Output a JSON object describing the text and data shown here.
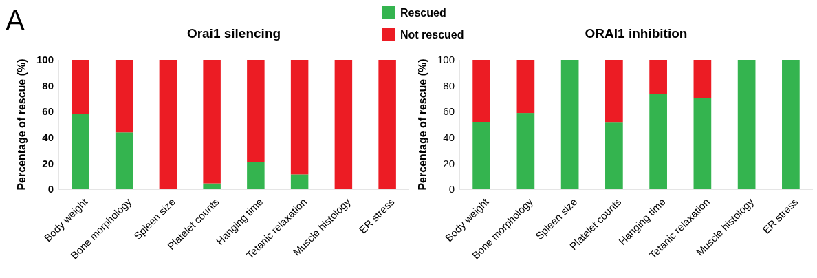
{
  "chart_data": [
    {
      "type": "bar",
      "title": "Orai1 silencing",
      "ylabel": "Percentage of rescue (%)",
      "annotations": [
        "A"
      ],
      "stacked": true,
      "legend": "top right",
      "categories": [
        "Body weight",
        "Bone morphology",
        "Spleen size",
        "Platelet counts",
        "Hanging time",
        "Tetanic relaxation",
        "Muscle histology",
        "ER stress"
      ],
      "series": [
        {
          "name": "Rescued",
          "color": "#34b44f",
          "values": [
            58,
            44,
            0,
            4.5,
            21,
            11.5,
            0,
            0
          ]
        },
        {
          "name": "Not rescued",
          "color": "#ec1c24",
          "values": [
            42,
            56,
            100,
            95.5,
            79,
            88.5,
            100,
            100
          ]
        }
      ],
      "ylim": [
        0,
        100
      ],
      "yticks": [
        0,
        20,
        40,
        60,
        80,
        100
      ],
      "grid": false
    },
    {
      "type": "bar",
      "title": "ORAI1 inhibition",
      "ylabel": "Percentage of rescue (%)",
      "stacked": true,
      "categories": [
        "Body weight",
        "Bone morphology",
        "Spleen size",
        "Platelet counts",
        "Hanging time",
        "Tetanic relaxation",
        "Muscle histology",
        "ER stress"
      ],
      "series": [
        {
          "color": "#34b44f",
          "values": [
            52,
            59,
            100,
            51.5,
            73.5,
            70.5,
            100,
            100
          ]
        },
        {
          "color": "#ec1c24",
          "values": [
            48,
            41,
            0,
            48.5,
            26.5,
            29.5,
            0,
            0
          ]
        }
      ],
      "ylim": [
        0,
        100
      ],
      "yticks": [
        0,
        20,
        40,
        60,
        80,
        100
      ],
      "grid": false
    }
  ]
}
